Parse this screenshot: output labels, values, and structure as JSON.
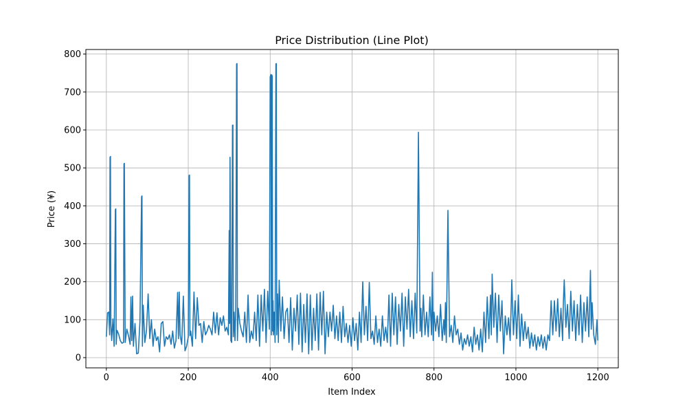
{
  "chart_data": {
    "type": "line",
    "title": "Price Distribution (Line Plot)",
    "xlabel": "Item Index",
    "ylabel": "Price (¥)",
    "xlim": [
      -50,
      1250
    ],
    "ylim": [
      -27,
      812
    ],
    "xticks": [
      "0",
      "200",
      "400",
      "600",
      "800",
      "1000",
      "1200"
    ],
    "yticks": [
      "0",
      "100",
      "200",
      "300",
      "400",
      "500",
      "600",
      "700",
      "800"
    ],
    "grid": true,
    "legend": "none",
    "line_color": "#1f77b4",
    "series": [
      {
        "x": [
          0,
          3,
          6,
          8,
          9,
          10,
          11,
          13,
          16,
          19,
          22,
          23,
          24,
          26,
          30,
          34,
          38,
          42,
          43,
          44,
          46,
          50,
          54,
          58,
          60,
          62,
          64,
          66,
          70,
          74,
          78,
          82,
          86,
          87,
          88,
          90,
          94,
          98,
          102,
          106,
          110,
          114,
          118,
          122,
          126,
          130,
          134,
          138,
          142,
          146,
          150,
          154,
          158,
          162,
          166,
          170,
          174,
          176,
          178,
          180,
          184,
          188,
          192,
          196,
          200,
          202,
          203,
          204,
          206,
          210,
          214,
          218,
          222,
          226,
          230,
          234,
          238,
          242,
          246,
          250,
          254,
          258,
          262,
          266,
          270,
          274,
          278,
          282,
          286,
          290,
          294,
          298,
          300,
          301,
          302,
          304,
          306,
          308,
          309,
          310,
          312,
          314,
          316,
          318,
          319,
          320,
          322,
          326,
          330,
          334,
          338,
          342,
          346,
          350,
          354,
          358,
          362,
          366,
          370,
          374,
          378,
          382,
          386,
          390,
          394,
          398,
          400,
          402,
          403,
          404,
          405,
          406,
          407,
          408,
          410,
          412,
          414,
          415,
          416,
          418,
          420,
          422,
          426,
          430,
          434,
          438,
          442,
          446,
          450,
          454,
          458,
          462,
          466,
          470,
          474,
          478,
          482,
          486,
          490,
          494,
          498,
          502,
          506,
          510,
          514,
          518,
          522,
          526,
          530,
          534,
          538,
          542,
          546,
          550,
          554,
          558,
          562,
          566,
          570,
          574,
          578,
          582,
          586,
          590,
          594,
          598,
          602,
          606,
          610,
          614,
          618,
          622,
          626,
          630,
          634,
          638,
          642,
          646,
          650,
          654,
          658,
          662,
          666,
          670,
          674,
          678,
          682,
          686,
          690,
          694,
          698,
          702,
          706,
          710,
          714,
          718,
          722,
          726,
          730,
          734,
          738,
          742,
          746,
          750,
          754,
          758,
          762,
          766,
          768,
          770,
          774,
          778,
          782,
          786,
          790,
          794,
          796,
          798,
          800,
          804,
          808,
          812,
          816,
          820,
          824,
          826,
          828,
          830,
          834,
          838,
          842,
          846,
          850,
          854,
          858,
          862,
          866,
          870,
          874,
          878,
          882,
          886,
          890,
          894,
          898,
          902,
          906,
          910,
          914,
          918,
          922,
          926,
          930,
          934,
          938,
          940,
          942,
          946,
          950,
          954,
          958,
          962,
          966,
          970,
          974,
          978,
          982,
          986,
          988,
          990,
          994,
          998,
          1002,
          1006,
          1010,
          1014,
          1018,
          1022,
          1026,
          1030,
          1034,
          1038,
          1042,
          1046,
          1050,
          1054,
          1058,
          1062,
          1066,
          1070,
          1074,
          1078,
          1082,
          1086,
          1090,
          1094,
          1098,
          1102,
          1106,
          1110,
          1114,
          1116,
          1118,
          1122,
          1126,
          1130,
          1134,
          1138,
          1142,
          1146,
          1150,
          1154,
          1158,
          1162,
          1166,
          1170,
          1174,
          1178,
          1182,
          1184,
          1186,
          1190,
          1194,
          1198,
          1200
        ],
        "y": [
          55,
          118,
          120,
          60,
          528,
          530,
          90,
          45,
          102,
          30,
          390,
          392,
          35,
          72,
          62,
          45,
          38,
          40,
          510,
          512,
          40,
          75,
          58,
          35,
          160,
          45,
          162,
          30,
          90,
          10,
          12,
          95,
          424,
          426,
          30,
          138,
          40,
          72,
          168,
          50,
          100,
          30,
          75,
          45,
          55,
          15,
          90,
          95,
          30,
          55,
          48,
          60,
          35,
          70,
          25,
          45,
          172,
          50,
          173,
          60,
          35,
          162,
          18,
          30,
          55,
          480,
          481,
          58,
          70,
          30,
          173,
          50,
          158,
          85,
          90,
          40,
          95,
          60,
          70,
          85,
          75,
          60,
          120,
          65,
          118,
          60,
          105,
          85,
          110,
          70,
          80,
          60,
          335,
          90,
          528,
          45,
          40,
          612,
          613,
          55,
          120,
          45,
          130,
          774,
          775,
          45,
          130,
          90,
          70,
          55,
          120,
          40,
          165,
          40,
          70,
          50,
          120,
          45,
          165,
          30,
          165,
          70,
          180,
          40,
          175,
          75,
          740,
          746,
          60,
          745,
          742,
          70,
          150,
          60,
          120,
          40,
          774,
          775,
          60,
          168,
          40,
          204,
          70,
          160,
          50,
          120,
          130,
          40,
          158,
          20,
          130,
          70,
          165,
          35,
          170,
          15,
          140,
          40,
          168,
          10,
          165,
          20,
          130,
          45,
          168,
          20,
          172,
          60,
          175,
          10,
          120,
          55,
          120,
          70,
          138,
          50,
          110,
          45,
          120,
          40,
          135,
          55,
          90,
          40,
          85,
          30,
          105,
          45,
          90,
          20,
          120,
          40,
          200,
          60,
          135,
          45,
          198,
          50,
          70,
          35,
          110,
          40,
          75,
          30,
          110,
          45,
          80,
          40,
          165,
          30,
          170,
          60,
          160,
          35,
          140,
          70,
          170,
          30,
          160,
          75,
          180,
          55,
          150,
          50,
          170,
          65,
          594,
          70,
          130,
          55,
          165,
          60,
          120,
          55,
          160,
          60,
          225,
          45,
          120,
          70,
          110,
          55,
          140,
          45,
          100,
          60,
          145,
          40,
          388,
          55,
          85,
          40,
          110,
          60,
          75,
          35,
          65,
          20,
          50,
          35,
          60,
          30,
          55,
          15,
          80,
          35,
          60,
          20,
          75,
          15,
          120,
          40,
          160,
          50,
          165,
          60,
          220,
          80,
          170,
          40,
          165,
          70,
          150,
          10,
          110,
          60,
          105,
          45,
          120,
          205,
          60,
          150,
          50,
          165,
          30,
          115,
          45,
          95,
          50,
          80,
          25,
          65,
          30,
          60,
          20,
          55,
          30,
          60,
          25,
          55,
          20,
          60,
          45,
          150,
          60,
          150,
          70,
          155,
          55,
          130,
          45,
          150,
          205,
          80,
          140,
          50,
          175,
          70,
          150,
          45,
          140,
          60,
          165,
          40,
          145,
          70,
          160,
          55,
          230,
          75,
          145,
          60,
          35,
          100,
          45
        ]
      }
    ]
  }
}
